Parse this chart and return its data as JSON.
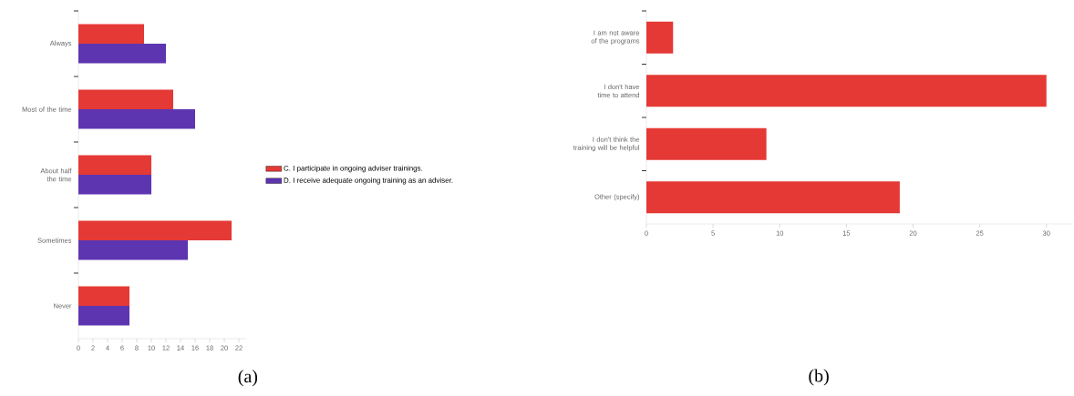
{
  "chart_data": [
    {
      "type": "bar",
      "orientation": "horizontal",
      "categories": [
        "Always",
        "Most of the time",
        "About half the time",
        "Sometimes",
        "Never"
      ],
      "series": [
        {
          "name": "C. I participate in ongoing adviser trainings.",
          "color": "#e53935",
          "values": [
            9,
            13,
            10,
            21,
            7
          ]
        },
        {
          "name": "D. I receive adequate ongoing training as an adviser.",
          "color": "#5e35b1",
          "values": [
            12,
            16,
            10,
            15,
            7
          ]
        }
      ],
      "xlim": [
        0,
        23
      ],
      "xticks": [
        0,
        2,
        4,
        6,
        8,
        10,
        12,
        14,
        16,
        18,
        20,
        22
      ],
      "legend": "right",
      "grid": false,
      "annotations": [
        "(a)"
      ]
    },
    {
      "type": "bar",
      "orientation": "horizontal",
      "categories": [
        "I am not aware of the programs",
        "I don't have time to attend",
        "I don't think the training will be helpful",
        "Other (specify)"
      ],
      "series": [
        {
          "color": "#e53935",
          "values": [
            2,
            30,
            9,
            19
          ]
        }
      ],
      "xlim": [
        0,
        32
      ],
      "xticks": [
        0,
        5,
        10,
        15,
        20,
        25,
        30
      ],
      "legend": false,
      "grid": false,
      "annotations": [
        "(b)"
      ]
    }
  ]
}
